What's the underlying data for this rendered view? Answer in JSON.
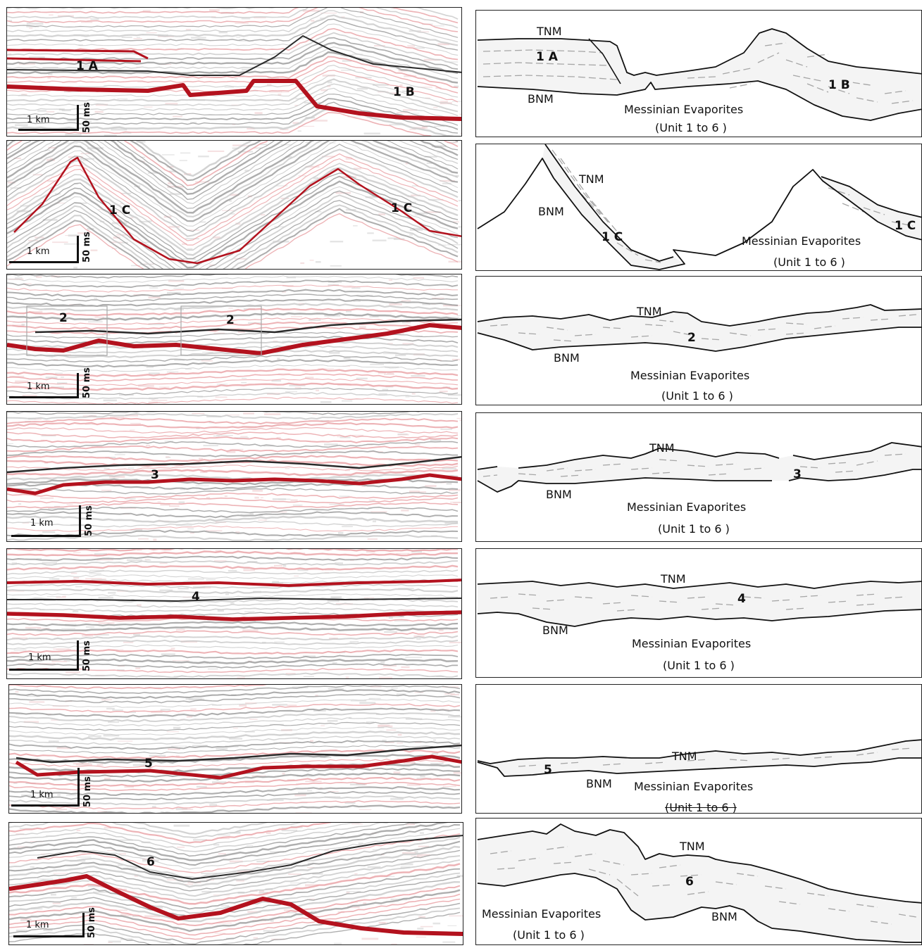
{
  "labels": {
    "tnm": "TNM",
    "bnm": "BNM",
    "evap": "Messinian Evaporites",
    "evap_sub": "(Unit 1 to 6 )",
    "scale_km": "1 km",
    "scale_ms": "50 ms"
  },
  "rows": [
    {
      "id": "1",
      "units": [
        "1 A",
        "1 B"
      ]
    },
    {
      "id": "1c",
      "units": [
        "1 C",
        "1 C"
      ]
    },
    {
      "id": "2",
      "units": [
        "2",
        "2"
      ]
    },
    {
      "id": "3",
      "units": [
        "3"
      ]
    },
    {
      "id": "4",
      "units": [
        "4"
      ]
    },
    {
      "id": "5",
      "units": [
        "5"
      ]
    },
    {
      "id": "6",
      "units": [
        "6"
      ]
    }
  ],
  "colors": {
    "strong_reflector": "#b3121e",
    "weak_reflector": "#e8a0a4",
    "dark_reflector": "#2a2a2a",
    "grey_reflector": "#9a9a9a"
  }
}
